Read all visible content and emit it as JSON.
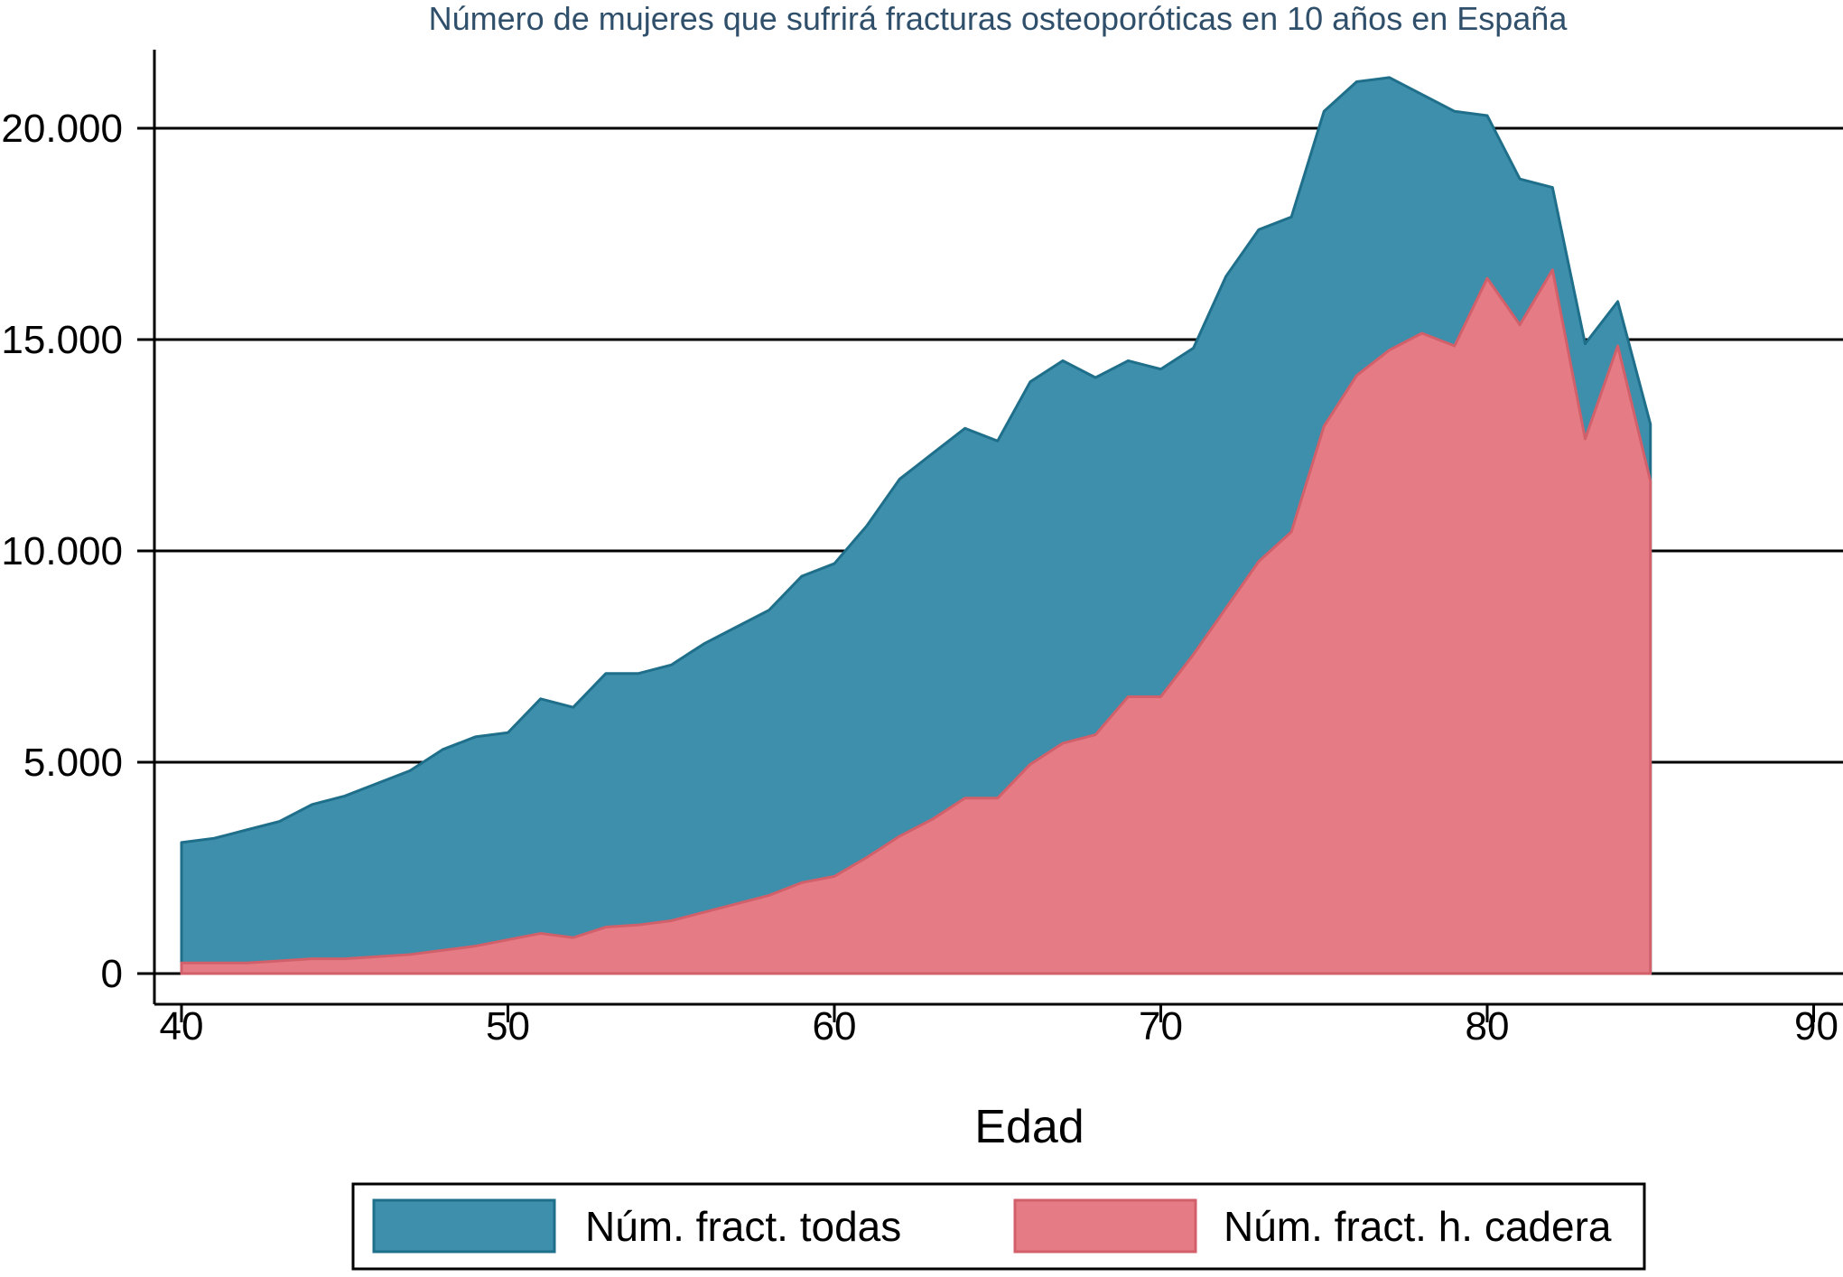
{
  "chart_data": {
    "type": "area",
    "title": "Número de mujeres que sufrirá fracturas osteoporóticas en 10 años en España",
    "xlabel": "Edad",
    "ylabel": "",
    "xlim": [
      40,
      90
    ],
    "ylim": [
      0,
      22000
    ],
    "x_ticks": [
      40,
      50,
      60,
      70,
      80,
      90
    ],
    "x_tick_labels": [
      "40",
      "50",
      "60",
      "70",
      "80",
      "90"
    ],
    "y_ticks": [
      0,
      5000,
      10000,
      15000,
      20000
    ],
    "y_tick_labels": [
      "0",
      "5.000",
      "10.000",
      "15.000",
      "20.000"
    ],
    "grid": true,
    "legend_position": "bottom",
    "colors": {
      "todas_fill": "#3d8fab",
      "todas_line": "#1f6f8b",
      "cadera_fill": "#e57b84",
      "cadera_line": "#d1606b",
      "title": "#2f4f6b",
      "axis": "#000000"
    },
    "x": [
      40,
      41,
      42,
      43,
      44,
      45,
      46,
      47,
      48,
      49,
      50,
      51,
      52,
      53,
      54,
      55,
      56,
      57,
      58,
      59,
      60,
      61,
      62,
      63,
      64,
      65,
      66,
      67,
      68,
      69,
      70,
      71,
      72,
      73,
      74,
      75,
      76,
      77,
      78,
      79,
      80,
      81,
      82,
      83,
      84,
      85
    ],
    "series": [
      {
        "name": "Núm. fract. todas",
        "values": [
          3100,
          3200,
          3400,
          3600,
          4000,
          4200,
          4500,
          4800,
          5300,
          5600,
          5700,
          6500,
          6300,
          7100,
          7100,
          7300,
          7800,
          8200,
          8600,
          9400,
          9700,
          10600,
          11700,
          12300,
          12900,
          12600,
          14000,
          14500,
          14100,
          14500,
          14300,
          14800,
          16500,
          17600,
          17900,
          20400,
          21100,
          21200,
          20800,
          20400,
          20300,
          18800,
          18600,
          14900,
          15900,
          13000
        ]
      },
      {
        "name": "Núm. fract. h. cadera",
        "values": [
          250,
          250,
          250,
          300,
          350,
          350,
          400,
          450,
          550,
          650,
          800,
          950,
          850,
          1100,
          1150,
          1250,
          1450,
          1650,
          1850,
          2150,
          2300,
          2750,
          3250,
          3650,
          4150,
          4150,
          4950,
          5450,
          5650,
          6550,
          6550,
          7550,
          8650,
          9750,
          10450,
          12950,
          14150,
          14750,
          15150,
          14850,
          16450,
          15350,
          16650,
          12650,
          14850,
          11650
        ]
      }
    ]
  }
}
